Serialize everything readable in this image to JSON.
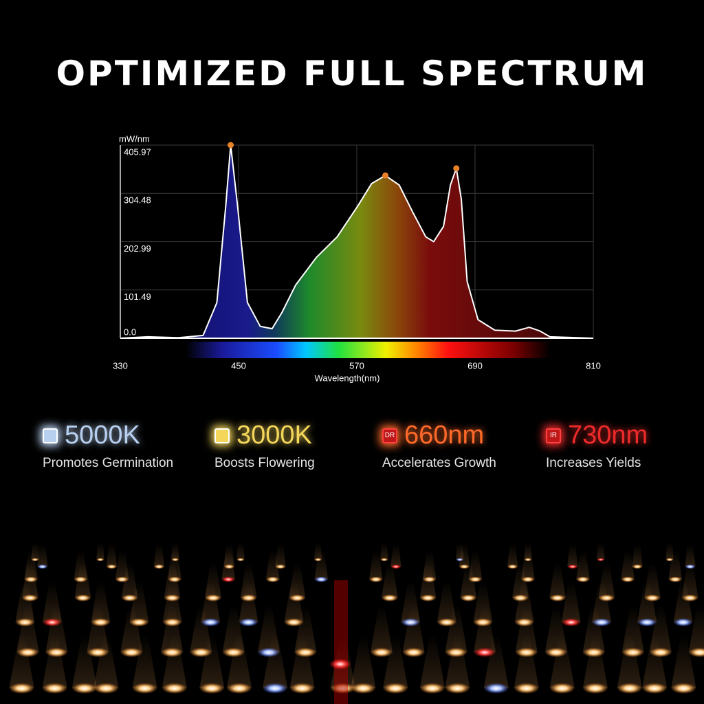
{
  "title": "OPTIMIZED FULL SPECTRUM",
  "chart_data": {
    "type": "area",
    "y_label": "mW/nm",
    "x_label": "Wavelength(nm)",
    "x": [
      330,
      358,
      389,
      414,
      428,
      437,
      442,
      449,
      459,
      472,
      484,
      494,
      508,
      529,
      550,
      571,
      585,
      599,
      613,
      627,
      640,
      648,
      658,
      665,
      671,
      676,
      682,
      693,
      710,
      731,
      745,
      756,
      766,
      810
    ],
    "values": [
      0,
      3,
      1,
      6,
      75,
      278,
      405.97,
      278,
      75,
      25,
      20,
      54,
      112,
      170,
      213,
      278,
      325,
      342,
      322,
      264,
      213,
      203,
      235,
      322,
      357,
      293,
      119,
      39,
      17,
      15,
      23,
      15,
      3,
      0
    ],
    "color": "#ffffff",
    "marker_color": "#e8832a",
    "xlim": [
      330,
      810
    ],
    "xticks": [
      330,
      450,
      570,
      690,
      810
    ],
    "ylim": [
      0,
      405.97
    ],
    "yticks": [
      {
        "value": 0,
        "label": "0.0"
      },
      101.49,
      202.99,
      304.48,
      405.97
    ],
    "grid": true
  },
  "features": [
    {
      "icon": "",
      "value": "5000K",
      "description": "Promotes Germination",
      "color": "#b8d0f0"
    },
    {
      "icon": "",
      "value": "3000K",
      "description": "Boosts Flowering",
      "color": "#f4d75a"
    },
    {
      "icon": "DR",
      "value": "660nm",
      "description": "Accelerates Growth",
      "color": "#ff6a2a"
    },
    {
      "icon": "IR",
      "value": "730nm",
      "description": "Increases Yields",
      "color": "#ee2a2a"
    }
  ]
}
